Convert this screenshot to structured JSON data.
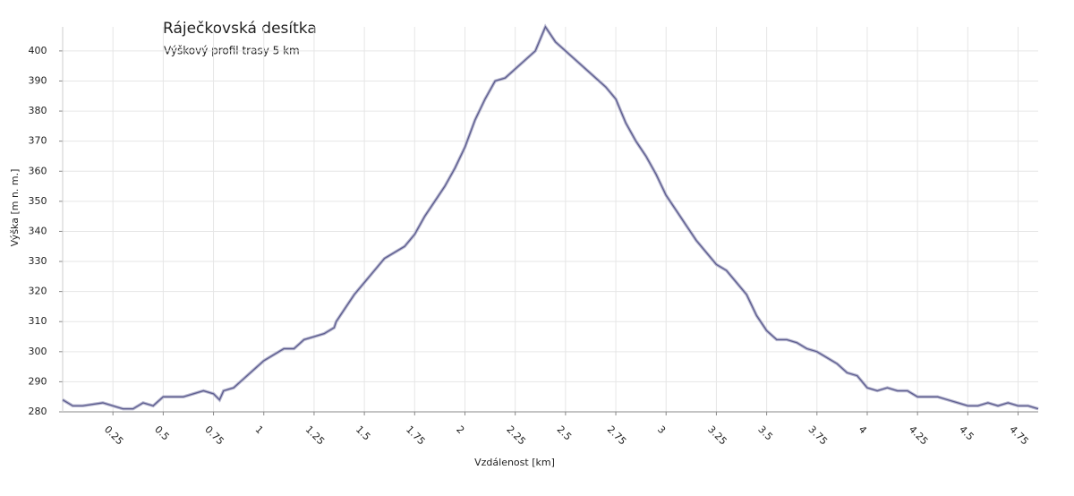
{
  "chart_data": {
    "type": "line",
    "title": "Ráječkovská desítka",
    "subtitle": "Výškový profil trasy  5 km",
    "x_label": "Vzdálenost [km]",
    "y_label": "Výška [m n. m.]",
    "x": [
      0,
      0.05,
      0.1,
      0.2,
      0.25,
      0.3,
      0.35,
      0.4,
      0.45,
      0.5,
      0.6,
      0.65,
      0.7,
      0.75,
      0.78,
      0.8,
      0.85,
      0.9,
      0.95,
      1.0,
      1.05,
      1.1,
      1.15,
      1.2,
      1.25,
      1.3,
      1.35,
      1.36,
      1.4,
      1.45,
      1.5,
      1.55,
      1.6,
      1.7,
      1.75,
      1.8,
      1.85,
      1.9,
      1.95,
      2.0,
      2.05,
      2.1,
      2.15,
      2.2,
      2.25,
      2.3,
      2.35,
      2.4,
      2.45,
      2.5,
      2.55,
      2.6,
      2.65,
      2.7,
      2.75,
      2.8,
      2.85,
      2.9,
      2.95,
      3.0,
      3.05,
      3.1,
      3.15,
      3.2,
      3.25,
      3.3,
      3.35,
      3.4,
      3.45,
      3.5,
      3.55,
      3.6,
      3.65,
      3.7,
      3.75,
      3.8,
      3.85,
      3.9,
      3.95,
      4.0,
      4.05,
      4.1,
      4.15,
      4.2,
      4.25,
      4.3,
      4.35,
      4.4,
      4.45,
      4.5,
      4.55,
      4.6,
      4.65,
      4.7,
      4.75,
      4.8,
      4.85
    ],
    "series": [
      {
        "name": "Výška",
        "color": "#5c5c8e",
        "values": [
          284,
          282,
          282,
          283,
          282,
          281,
          281,
          283,
          282,
          285,
          285,
          286,
          287,
          286,
          284,
          287,
          288,
          291,
          294,
          297,
          299,
          301,
          301,
          304,
          305,
          306,
          308,
          310,
          314,
          319,
          323,
          327,
          331,
          335,
          339,
          345,
          350,
          355,
          361,
          368,
          377,
          384,
          390,
          391,
          394,
          397,
          400,
          408,
          403,
          400,
          397,
          394,
          391,
          388,
          384,
          376,
          370,
          365,
          359,
          352,
          347,
          342,
          337,
          333,
          329,
          327,
          323,
          319,
          312,
          307,
          304,
          304,
          303,
          301,
          300,
          298,
          296,
          293,
          292,
          288,
          287,
          288,
          287,
          287,
          285,
          285,
          285,
          284,
          283,
          282,
          282,
          283,
          282,
          283,
          282,
          282,
          281
        ]
      }
    ],
    "xlim": [
      0,
      4.85
    ],
    "ylim": [
      280,
      408
    ],
    "xticks": [
      0.25,
      0.5,
      0.75,
      1,
      1.25,
      1.5,
      1.75,
      2,
      2.25,
      2.5,
      2.75,
      3,
      3.25,
      3.5,
      3.75,
      4,
      4.25,
      4.5,
      4.75
    ],
    "yticks": [
      280,
      290,
      300,
      310,
      320,
      330,
      340,
      350,
      360,
      370,
      380,
      390,
      400
    ],
    "grid": true
  }
}
